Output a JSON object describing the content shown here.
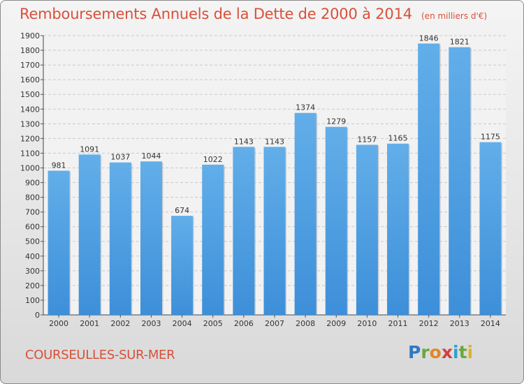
{
  "title": "Remboursements Annuels de la Dette de 2000 à 2014",
  "unit_note": "(en milliers d'€)",
  "location": "COURSEULLES-SUR-MER",
  "logo_text": "Proxiti",
  "colors": {
    "bar": "#3d8fd9",
    "bar_light": "#62aee9",
    "title": "#d9503a"
  },
  "chart_data": {
    "type": "bar",
    "title": "Remboursements Annuels de la Dette de 2000 à 2014",
    "categories": [
      "2000",
      "2001",
      "2002",
      "2003",
      "2004",
      "2005",
      "2006",
      "2007",
      "2008",
      "2009",
      "2010",
      "2011",
      "2012",
      "2013",
      "2014"
    ],
    "values": [
      981,
      1091,
      1037,
      1044,
      674,
      1022,
      1143,
      1143,
      1374,
      1279,
      1157,
      1165,
      1846,
      1821,
      1175
    ],
    "ylim": [
      0,
      1900
    ],
    "yticks": [
      0,
      100,
      200,
      300,
      400,
      500,
      600,
      700,
      800,
      900,
      1000,
      1100,
      1200,
      1300,
      1400,
      1500,
      1600,
      1700,
      1800,
      1900
    ],
    "grid": true,
    "xlabel": "",
    "ylabel": ""
  }
}
